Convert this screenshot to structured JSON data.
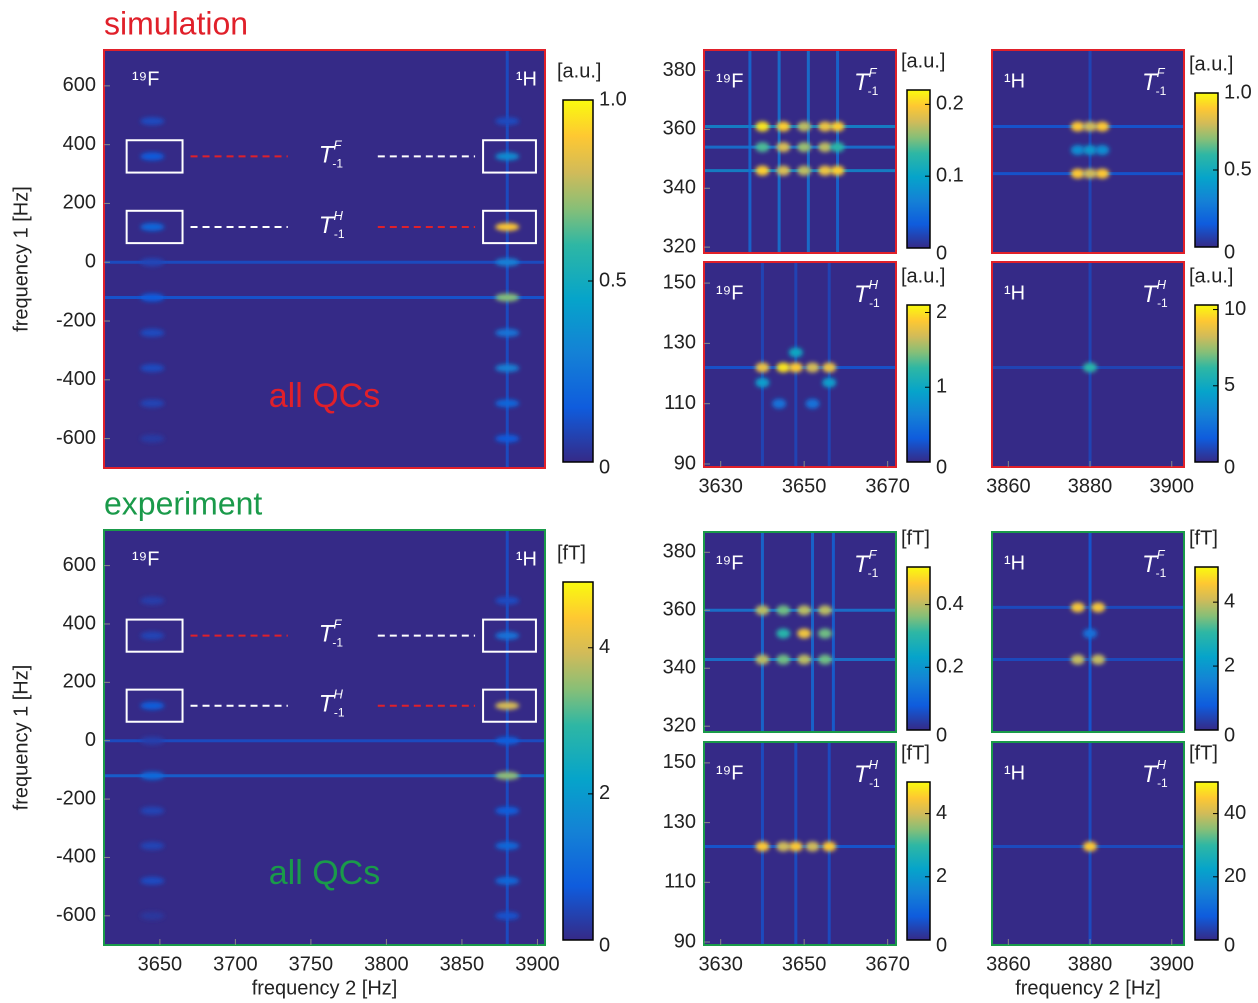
{
  "chart_data": [
    {
      "type": "heatmap",
      "title": "simulation",
      "title_color": "#e0202a",
      "frame_color": "#e0202a",
      "xlim": [
        3613,
        3905
      ],
      "ylim": [
        -700,
        722
      ],
      "xticks": [],
      "yticks": [
        -600,
        -400,
        -200,
        0,
        200,
        400,
        600
      ],
      "ylabel": "frequency 1 [Hz]",
      "corner_labels": [
        "¹⁹F",
        "¹H"
      ],
      "annotation": "all QCs",
      "annotation_color": "#e0202a",
      "boxes": [
        [
          3628,
          3665,
          305,
          415
        ],
        [
          3628,
          3665,
          65,
          175
        ],
        [
          3864,
          3899,
          305,
          415
        ],
        [
          3864,
          3899,
          65,
          175
        ]
      ],
      "links": [
        {
          "y": 360,
          "label": {
            "base": "T",
            "sup": "F",
            "sub": "-1"
          },
          "colors": [
            "#e0202a",
            "#ffffff"
          ]
        },
        {
          "y": 120,
          "label": {
            "base": "T",
            "sup": "H",
            "sub": "-1"
          },
          "colors": [
            "#ffffff",
            "#e0202a"
          ]
        }
      ],
      "peaks": {
        "x": [
          3645,
          3645,
          3645,
          3645,
          3645,
          3645,
          3645,
          3645,
          3645,
          3880,
          3880,
          3880,
          3880,
          3880,
          3880,
          3880,
          3880,
          3880
        ],
        "y": [
          480,
          360,
          120,
          0,
          -120,
          -240,
          -360,
          -480,
          -600,
          480,
          360,
          120,
          0,
          -120,
          -240,
          -360,
          -480,
          -600
        ],
        "values": [
          0.1,
          0.15,
          0.2,
          0.08,
          0.15,
          0.1,
          0.1,
          0.08,
          0.05,
          0.1,
          0.35,
          0.9,
          0.3,
          0.7,
          0.25,
          0.3,
          0.2,
          0.15
        ]
      },
      "streaks": {
        "y": [
          0,
          -120
        ],
        "values": [
          0.12,
          0.15
        ]
      },
      "vstreaks": {
        "x": [
          3880
        ],
        "values": [
          0.12
        ]
      },
      "colorbar": {
        "unit": "[a.u.]",
        "clim": [
          0,
          1
        ],
        "ticks": [
          0,
          0.5,
          {
            "value": 1,
            "label": "1.0"
          }
        ]
      }
    },
    {
      "type": "heatmap",
      "frame_color": "#e0202a",
      "xlim": [
        3626,
        3672
      ],
      "ylim": [
        318,
        387
      ],
      "yticks": [
        320,
        340,
        360,
        380
      ],
      "nucleus": "¹⁹F",
      "t_label": {
        "base": "T",
        "sup": "F",
        "sub": "-1"
      },
      "peaks": {
        "x": [
          3640,
          3645,
          3650,
          3655,
          3658,
          3640,
          3645,
          3650,
          3655,
          3658,
          3640,
          3645,
          3650,
          3655,
          3658
        ],
        "y": [
          346,
          346,
          346,
          346,
          346,
          354,
          354,
          354,
          354,
          354,
          361,
          361,
          361,
          361,
          361
        ],
        "values": [
          0.2,
          0.18,
          0.17,
          0.19,
          0.2,
          0.14,
          0.18,
          0.16,
          0.17,
          0.13,
          0.21,
          0.2,
          0.17,
          0.19,
          0.2
        ]
      },
      "streaks": {
        "y": [
          346,
          354,
          361
        ],
        "values": [
          0.08,
          0.06,
          0.08
        ]
      },
      "vstreaks": {
        "x": [
          3637,
          3644,
          3651,
          3658
        ],
        "values": [
          0.05,
          0.06,
          0.06,
          0.05
        ]
      },
      "colorbar": {
        "unit": "[a.u.]",
        "clim": [
          0,
          0.22
        ],
        "ticks": [
          0,
          0.1,
          0.2
        ]
      }
    },
    {
      "type": "heatmap",
      "frame_color": "#e0202a",
      "xlim": [
        3856,
        3903
      ],
      "ylim": [
        318,
        387
      ],
      "yticks": [],
      "nucleus": "¹H",
      "t_label": {
        "base": "T",
        "sup": "F",
        "sub": "-1"
      },
      "peaks": {
        "x": [
          3877,
          3880,
          3883,
          3877,
          3880,
          3883,
          3877,
          3880,
          3883
        ],
        "y": [
          345,
          345,
          345,
          353,
          353,
          353,
          361,
          361,
          361
        ],
        "values": [
          0.9,
          0.8,
          0.9,
          0.35,
          0.4,
          0.35,
          0.9,
          0.8,
          0.9
        ]
      },
      "streaks": {
        "y": [
          345,
          361
        ],
        "values": [
          0.15,
          0.15
        ]
      },
      "vstreaks": {
        "x": [
          3880
        ],
        "values": [
          0.1
        ]
      },
      "colorbar": {
        "unit": "[a.u.]",
        "clim": [
          0,
          1
        ],
        "ticks": [
          0,
          0.5,
          {
            "value": 1,
            "label": "1.0"
          }
        ]
      }
    },
    {
      "type": "heatmap",
      "frame_color": "#e0202a",
      "xlim": [
        3626,
        3672
      ],
      "ylim": [
        89,
        157
      ],
      "xticks": [
        3630,
        3650,
        3670
      ],
      "yticks": [
        90,
        110,
        130,
        150
      ],
      "nucleus": "¹⁹F",
      "t_label": {
        "base": "T",
        "sup": "H",
        "sub": "-1"
      },
      "peaks": {
        "x": [
          3640,
          3645,
          3648,
          3652,
          3656,
          3640,
          3648,
          3656,
          3644,
          3652
        ],
        "y": [
          122,
          122,
          122,
          122,
          122,
          117,
          127,
          117,
          110,
          110
        ],
        "values": [
          1.8,
          2.0,
          1.9,
          1.7,
          1.8,
          0.9,
          1.0,
          0.9,
          0.5,
          0.5
        ]
      },
      "streaks": {
        "y": [
          122
        ],
        "values": [
          0.3
        ]
      },
      "vstreaks": {
        "x": [
          3640,
          3648,
          3656
        ],
        "values": [
          0.2,
          0.2,
          0.2
        ]
      },
      "colorbar": {
        "unit": "[a.u.]",
        "clim": [
          0,
          2.1
        ],
        "ticks": [
          0,
          1,
          2
        ]
      }
    },
    {
      "type": "heatmap",
      "frame_color": "#e0202a",
      "xlim": [
        3856,
        3903
      ],
      "ylim": [
        89,
        157
      ],
      "xticks": [
        3860,
        3880,
        3900
      ],
      "yticks": [],
      "nucleus": "¹H",
      "t_label": {
        "base": "T",
        "sup": "H",
        "sub": "-1"
      },
      "peaks": {
        "x": [
          3880
        ],
        "y": [
          122
        ],
        "values": [
          6
        ]
      },
      "streaks": {
        "y": [
          122
        ],
        "values": [
          1
        ]
      },
      "vstreaks": {
        "x": [
          3880
        ],
        "values": [
          1
        ]
      },
      "colorbar": {
        "unit": "[a.u.]",
        "clim": [
          0,
          10.3
        ],
        "ticks": [
          0,
          5,
          10
        ]
      }
    },
    {
      "type": "heatmap",
      "title": "experiment",
      "title_color": "#1a9a4a",
      "frame_color": "#1a9a4a",
      "xlim": [
        3613,
        3905
      ],
      "ylim": [
        -700,
        722
      ],
      "xticks": [
        3650,
        3700,
        3750,
        3800,
        3850,
        3900
      ],
      "yticks": [
        -600,
        -400,
        -200,
        0,
        200,
        400,
        600
      ],
      "xlabel": "frequency 2 [Hz]",
      "ylabel": "frequency 1 [Hz]",
      "corner_labels": [
        "¹⁹F",
        "¹H"
      ],
      "annotation": "all QCs",
      "annotation_color": "#1a9a4a",
      "boxes": [
        [
          3628,
          3665,
          305,
          415
        ],
        [
          3628,
          3665,
          65,
          175
        ],
        [
          3864,
          3899,
          305,
          415
        ],
        [
          3864,
          3899,
          65,
          175
        ]
      ],
      "links": [
        {
          "y": 360,
          "label": {
            "base": "T",
            "sup": "F",
            "sub": "-1"
          },
          "colors": [
            "#e0202a",
            "#ffffff"
          ]
        },
        {
          "y": 120,
          "label": {
            "base": "T",
            "sup": "H",
            "sub": "-1"
          },
          "colors": [
            "#ffffff",
            "#e0202a"
          ]
        }
      ],
      "peaks": {
        "x": [
          3645,
          3645,
          3645,
          3645,
          3645,
          3645,
          3645,
          3645,
          3645,
          3880,
          3880,
          3880,
          3880,
          3880,
          3880,
          3880,
          3880,
          3880
        ],
        "y": [
          480,
          360,
          120,
          0,
          -120,
          -240,
          -360,
          -480,
          -600,
          480,
          360,
          120,
          0,
          -120,
          -240,
          -360,
          -480,
          -600
        ],
        "values": [
          0.3,
          0.4,
          0.8,
          0.3,
          1.0,
          0.4,
          0.4,
          0.5,
          0.2,
          0.5,
          1.2,
          4.0,
          0.8,
          3.5,
          0.8,
          1.0,
          1.0,
          0.6
        ]
      },
      "streaks": {
        "y": [
          0,
          -120
        ],
        "values": [
          0.6,
          1.0
        ]
      },
      "vstreaks": {
        "x": [
          3880
        ],
        "values": [
          0.6
        ]
      },
      "colorbar": {
        "unit": "[fT]",
        "clim": [
          0,
          4.9
        ],
        "ticks": [
          0,
          2,
          4
        ]
      }
    },
    {
      "type": "heatmap",
      "frame_color": "#1a9a4a",
      "xlim": [
        3626,
        3672
      ],
      "ylim": [
        318,
        387
      ],
      "yticks": [
        320,
        340,
        360,
        380
      ],
      "nucleus": "¹⁹F",
      "t_label": {
        "base": "T",
        "sup": "F",
        "sub": "-1"
      },
      "peaks": {
        "x": [
          3640,
          3645,
          3650,
          3655,
          3645,
          3650,
          3655,
          3640,
          3645,
          3650,
          3655
        ],
        "y": [
          343,
          343,
          343,
          343,
          352,
          352,
          352,
          360,
          360,
          360,
          360
        ],
        "values": [
          0.4,
          0.35,
          0.4,
          0.35,
          0.3,
          0.45,
          0.35,
          0.4,
          0.35,
          0.4,
          0.4
        ]
      },
      "streaks": {
        "y": [
          343,
          360
        ],
        "values": [
          0.15,
          0.15
        ]
      },
      "vstreaks": {
        "x": [
          3640,
          3652,
          3657
        ],
        "values": [
          0.12,
          0.12,
          0.1
        ]
      },
      "colorbar": {
        "unit": "[fT]",
        "clim": [
          0,
          0.52
        ],
        "ticks": [
          0,
          0.2,
          0.4
        ]
      }
    },
    {
      "type": "heatmap",
      "frame_color": "#1a9a4a",
      "xlim": [
        3856,
        3903
      ],
      "ylim": [
        318,
        387
      ],
      "yticks": [],
      "nucleus": "¹H",
      "t_label": {
        "base": "T",
        "sup": "F",
        "sub": "-1"
      },
      "peaks": {
        "x": [
          3877,
          3882,
          3877,
          3882,
          3880
        ],
        "y": [
          361,
          361,
          343,
          343,
          352
        ],
        "values": [
          4.5,
          4.5,
          4,
          4,
          1.2
        ]
      },
      "streaks": {
        "y": [
          343,
          361
        ],
        "values": [
          0.6,
          0.6
        ]
      },
      "vstreaks": {
        "x": [
          3880
        ],
        "values": [
          0.8
        ]
      },
      "colorbar": {
        "unit": "[fT]",
        "clim": [
          0,
          5.1
        ],
        "ticks": [
          0,
          2,
          4
        ]
      }
    },
    {
      "type": "heatmap",
      "frame_color": "#1a9a4a",
      "xlim": [
        3626,
        3672
      ],
      "ylim": [
        89,
        157
      ],
      "xticks": [
        3630,
        3650,
        3670
      ],
      "yticks": [
        90,
        110,
        130,
        150
      ],
      "nucleus": "¹⁹F",
      "t_label": {
        "base": "T",
        "sup": "H",
        "sub": "-1"
      },
      "peaks": {
        "x": [
          3640,
          3645,
          3648,
          3652,
          3656
        ],
        "y": [
          122,
          122,
          122,
          122,
          122
        ],
        "values": [
          4.5,
          4.0,
          4.5,
          4.0,
          4.5
        ]
      },
      "streaks": {
        "y": [
          122
        ],
        "values": [
          0.8
        ]
      },
      "vstreaks": {
        "x": [
          3640,
          3648,
          3656
        ],
        "values": [
          0.6,
          0.6,
          0.6
        ]
      },
      "colorbar": {
        "unit": "[fT]",
        "clim": [
          0,
          5
        ],
        "ticks": [
          0,
          2,
          4
        ]
      }
    },
    {
      "type": "heatmap",
      "frame_color": "#1a9a4a",
      "xlim": [
        3856,
        3903
      ],
      "ylim": [
        89,
        157
      ],
      "xticks": [
        3860,
        3880,
        3900
      ],
      "yticks": [],
      "xlabel": "frequency 2 [Hz]",
      "nucleus": "¹H",
      "t_label": {
        "base": "T",
        "sup": "H",
        "sub": "-1"
      },
      "peaks": {
        "x": [
          3880
        ],
        "y": [
          122
        ],
        "values": [
          45
        ]
      },
      "streaks": {
        "y": [
          122
        ],
        "values": [
          6
        ]
      },
      "vstreaks": {
        "x": [
          3880
        ],
        "values": [
          6
        ]
      },
      "colorbar": {
        "unit": "[fT]",
        "clim": [
          0,
          50
        ],
        "ticks": [
          0,
          20,
          40
        ]
      }
    }
  ]
}
